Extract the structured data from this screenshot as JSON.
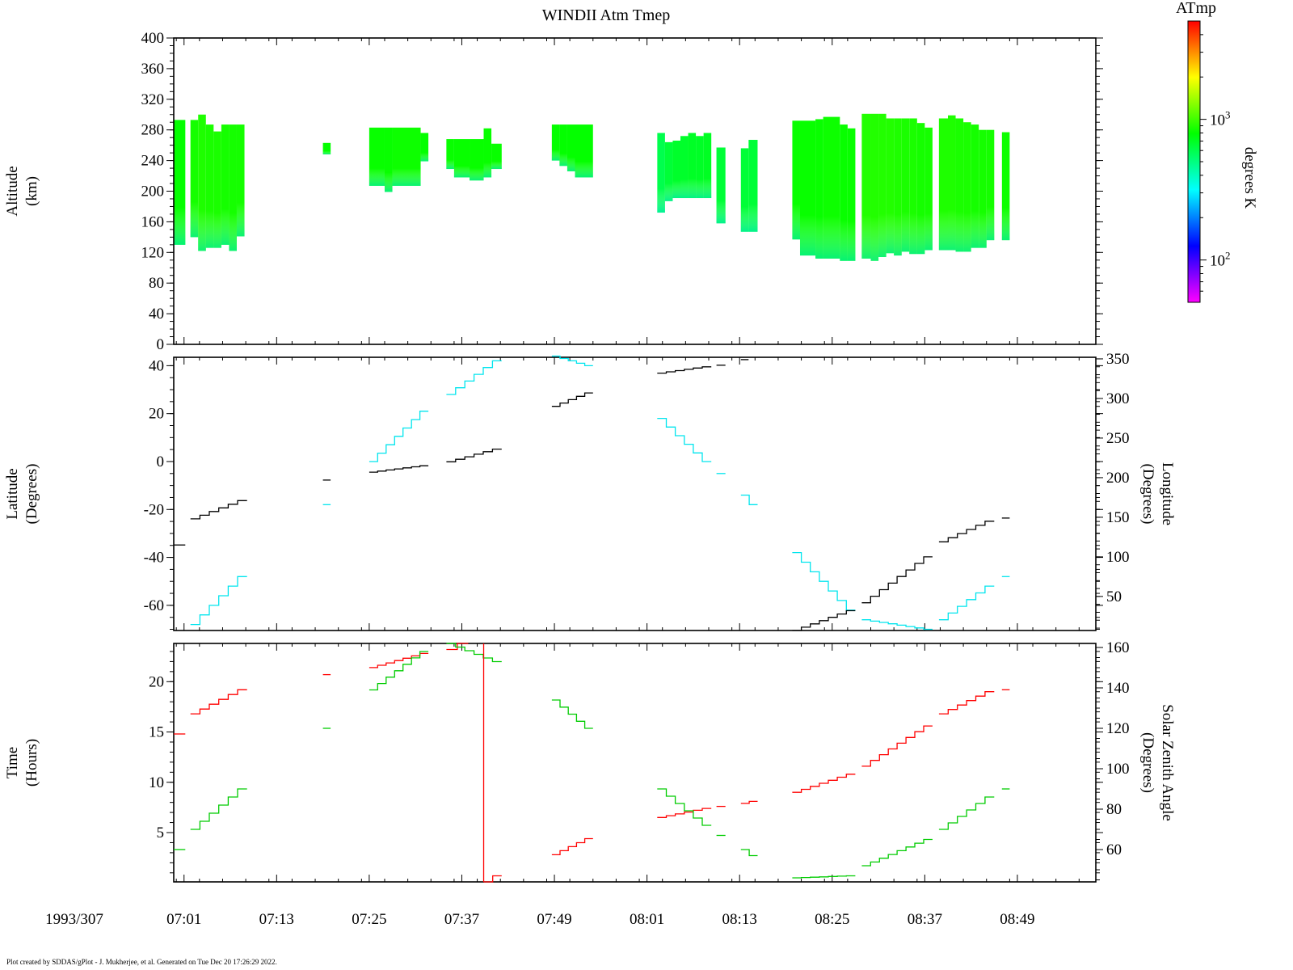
{
  "title": "WINDII Atm Tmep",
  "date_label": "1993/307",
  "footer": "Plot created by SDDAS/gPlot - J. Mukherjee, et al.  Generated on Tue Dec 20 17:26:29 2022.",
  "time_ticks": [
    "07:01",
    "07:13",
    "07:25",
    "07:37",
    "07:49",
    "08:01",
    "08:13",
    "08:25",
    "08:37",
    "08:49"
  ],
  "colorbar": {
    "title": "ATmp",
    "label": "degrees K",
    "scale": "log",
    "range": [
      50,
      5000
    ],
    "tick_labels": [
      {
        "base": "10",
        "exp": "3",
        "value": 1000
      },
      {
        "base": "10",
        "exp": "2",
        "value": 100
      }
    ]
  },
  "colors": {
    "latitude": "#00e5ee",
    "longitude": "#000000",
    "time": "#ff0000",
    "sza": "#00cc00",
    "temp_fill": "#66ee22"
  },
  "chart_data": [
    {
      "type": "heatmap",
      "title": "WINDII Atm Tmep",
      "ylabel": "Altitude\n(km)",
      "ylim": [
        0,
        400
      ],
      "yticks": [
        0,
        40,
        80,
        120,
        160,
        200,
        240,
        280,
        320,
        360,
        400
      ],
      "xlim": [
        "06:59:40",
        "08:59:10"
      ],
      "columns": [
        {
          "t0": "06:59:40",
          "t1": "07:01:10",
          "ybot": 130,
          "ytop": 293,
          "temp": 800
        },
        {
          "t0": "07:01:50",
          "t1": "07:02:50",
          "ybot": 140,
          "ytop": 293,
          "temp": 850
        },
        {
          "t0": "07:02:50",
          "t1": "07:03:50",
          "ybot": 122,
          "ytop": 300,
          "temp": 880
        },
        {
          "t0": "07:03:50",
          "t1": "07:04:50",
          "ybot": 126,
          "ytop": 287,
          "temp": 870
        },
        {
          "t0": "07:04:50",
          "t1": "07:05:50",
          "ybot": 126,
          "ytop": 278,
          "temp": 870
        },
        {
          "t0": "07:05:50",
          "t1": "07:06:50",
          "ybot": 130,
          "ytop": 287,
          "temp": 860
        },
        {
          "t0": "07:06:50",
          "t1": "07:07:50",
          "ybot": 122,
          "ytop": 287,
          "temp": 850
        },
        {
          "t0": "07:07:50",
          "t1": "07:08:50",
          "ybot": 141,
          "ytop": 287,
          "temp": 850
        },
        {
          "t0": "07:19:00",
          "t1": "07:20:00",
          "ybot": 248,
          "ytop": 263,
          "temp": 800
        },
        {
          "t0": "07:25:00",
          "t1": "07:27:00",
          "ybot": 207,
          "ytop": 283,
          "temp": 820
        },
        {
          "t0": "07:27:00",
          "t1": "07:28:00",
          "ybot": 199,
          "ytop": 283,
          "temp": 820
        },
        {
          "t0": "07:28:00",
          "t1": "07:31:40",
          "ybot": 207,
          "ytop": 283,
          "temp": 830
        },
        {
          "t0": "07:31:40",
          "t1": "07:32:40",
          "ybot": 239,
          "ytop": 276,
          "temp": 800
        },
        {
          "t0": "07:35:00",
          "t1": "07:36:00",
          "ybot": 229,
          "ytop": 268,
          "temp": 820
        },
        {
          "t0": "07:36:00",
          "t1": "07:38:00",
          "ybot": 218,
          "ytop": 268,
          "temp": 820
        },
        {
          "t0": "07:38:00",
          "t1": "07:39:50",
          "ybot": 214,
          "ytop": 268,
          "temp": 820
        },
        {
          "t0": "07:39:50",
          "t1": "07:40:50",
          "ybot": 218,
          "ytop": 282,
          "temp": 820
        },
        {
          "t0": "07:40:50",
          "t1": "07:42:10",
          "ybot": 229,
          "ytop": 262,
          "temp": 820
        },
        {
          "t0": "07:48:40",
          "t1": "07:49:40",
          "ybot": 240,
          "ytop": 287,
          "temp": 800
        },
        {
          "t0": "07:49:40",
          "t1": "07:50:40",
          "ybot": 233,
          "ytop": 287,
          "temp": 800
        },
        {
          "t0": "07:50:40",
          "t1": "07:51:40",
          "ybot": 226,
          "ytop": 287,
          "temp": 800
        },
        {
          "t0": "07:51:40",
          "t1": "07:54:00",
          "ybot": 218,
          "ytop": 287,
          "temp": 800
        },
        {
          "t0": "08:02:20",
          "t1": "08:03:20",
          "ybot": 172,
          "ytop": 276,
          "temp": 600
        },
        {
          "t0": "08:03:20",
          "t1": "08:04:20",
          "ybot": 187,
          "ytop": 264,
          "temp": 650
        },
        {
          "t0": "08:04:20",
          "t1": "08:05:20",
          "ybot": 191,
          "ytop": 266,
          "temp": 680
        },
        {
          "t0": "08:05:20",
          "t1": "08:06:20",
          "ybot": 191,
          "ytop": 272,
          "temp": 680
        },
        {
          "t0": "08:06:20",
          "t1": "08:07:20",
          "ybot": 191,
          "ytop": 276,
          "temp": 690
        },
        {
          "t0": "08:07:20",
          "t1": "08:08:20",
          "ybot": 191,
          "ytop": 272,
          "temp": 690
        },
        {
          "t0": "08:08:20",
          "t1": "08:09:20",
          "ybot": 191,
          "ytop": 276,
          "temp": 700
        },
        {
          "t0": "08:10:00",
          "t1": "08:11:10",
          "ybot": 158,
          "ytop": 257,
          "temp": 650
        },
        {
          "t0": "08:13:10",
          "t1": "08:14:10",
          "ybot": 147,
          "ytop": 256,
          "temp": 650
        },
        {
          "t0": "08:14:10",
          "t1": "08:15:20",
          "ybot": 147,
          "ytop": 267,
          "temp": 650
        },
        {
          "t0": "08:19:50",
          "t1": "08:20:50",
          "ybot": 137,
          "ytop": 292,
          "temp": 820
        },
        {
          "t0": "08:20:50",
          "t1": "08:22:50",
          "ybot": 116,
          "ytop": 292,
          "temp": 820
        },
        {
          "t0": "08:22:50",
          "t1": "08:23:50",
          "ybot": 112,
          "ytop": 294,
          "temp": 820
        },
        {
          "t0": "08:23:50",
          "t1": "08:26:00",
          "ybot": 112,
          "ytop": 297,
          "temp": 830
        },
        {
          "t0": "08:26:00",
          "t1": "08:27:00",
          "ybot": 109,
          "ytop": 287,
          "temp": 820
        },
        {
          "t0": "08:27:00",
          "t1": "08:28:00",
          "ybot": 109,
          "ytop": 282,
          "temp": 820
        },
        {
          "t0": "08:28:50",
          "t1": "08:30:00",
          "ybot": 112,
          "ytop": 301,
          "temp": 900
        },
        {
          "t0": "08:30:00",
          "t1": "08:31:00",
          "ybot": 109,
          "ytop": 301,
          "temp": 900
        },
        {
          "t0": "08:31:00",
          "t1": "08:32:00",
          "ybot": 114,
          "ytop": 301,
          "temp": 900
        },
        {
          "t0": "08:32:00",
          "t1": "08:33:00",
          "ybot": 119,
          "ytop": 295,
          "temp": 890
        },
        {
          "t0": "08:33:00",
          "t1": "08:34:00",
          "ybot": 116,
          "ytop": 295,
          "temp": 880
        },
        {
          "t0": "08:34:00",
          "t1": "08:35:00",
          "ybot": 121,
          "ytop": 295,
          "temp": 870
        },
        {
          "t0": "08:35:00",
          "t1": "08:36:00",
          "ybot": 118,
          "ytop": 295,
          "temp": 870
        },
        {
          "t0": "08:36:00",
          "t1": "08:37:00",
          "ybot": 118,
          "ytop": 289,
          "temp": 860
        },
        {
          "t0": "08:37:00",
          "t1": "08:38:00",
          "ybot": 123,
          "ytop": 283,
          "temp": 850
        },
        {
          "t0": "08:38:50",
          "t1": "08:40:00",
          "ybot": 123,
          "ytop": 295,
          "temp": 880
        },
        {
          "t0": "08:40:00",
          "t1": "08:41:00",
          "ybot": 123,
          "ytop": 299,
          "temp": 880
        },
        {
          "t0": "08:41:00",
          "t1": "08:42:00",
          "ybot": 121,
          "ytop": 295,
          "temp": 870
        },
        {
          "t0": "08:42:00",
          "t1": "08:43:00",
          "ybot": 121,
          "ytop": 290,
          "temp": 870
        },
        {
          "t0": "08:43:00",
          "t1": "08:44:00",
          "ybot": 126,
          "ytop": 287,
          "temp": 860
        },
        {
          "t0": "08:44:00",
          "t1": "08:45:00",
          "ybot": 126,
          "ytop": 280,
          "temp": 860
        },
        {
          "t0": "08:45:00",
          "t1": "08:46:00",
          "ybot": 136,
          "ytop": 280,
          "temp": 850
        },
        {
          "t0": "08:47:00",
          "t1": "08:48:00",
          "ybot": 136,
          "ytop": 277,
          "temp": 830
        }
      ]
    },
    {
      "type": "line",
      "ylabel": "Latitude\n(Degrees)",
      "ylabel_right": "Longitude\n(Degrees)",
      "ylim": [
        -70.5,
        43.5
      ],
      "yticks": [
        40,
        20,
        0,
        -20,
        -40,
        -60
      ],
      "ylim_right": [
        7,
        352
      ],
      "yticks_right": [
        350,
        300,
        250,
        200,
        150,
        100,
        50
      ],
      "series": [
        {
          "axis": "left",
          "segments": [
            {
              "t0": "07:01:50",
              "t1": "07:09:10",
              "y0": -68,
              "y1": -48
            },
            {
              "t0": "07:19:00",
              "t1": "07:20:00",
              "y0": -18,
              "y1": -18
            },
            {
              "t0": "07:25:00",
              "t1": "07:32:40",
              "y0": 0,
              "y1": 21
            },
            {
              "t0": "07:35:00",
              "t1": "07:42:10",
              "y0": 28,
              "y1": 42
            },
            {
              "t0": "07:48:40",
              "t1": "07:54:00",
              "y0": 44,
              "y1": 40
            },
            {
              "t0": "08:02:20",
              "t1": "08:09:20",
              "y0": 18,
              "y1": 0
            },
            {
              "t0": "08:10:00",
              "t1": "08:11:10",
              "y0": -5,
              "y1": -5
            },
            {
              "t0": "08:13:10",
              "t1": "08:15:20",
              "y0": -14,
              "y1": -18
            },
            {
              "t0": "08:19:50",
              "t1": "08:28:00",
              "y0": -38,
              "y1": -62
            },
            {
              "t0": "08:28:50",
              "t1": "08:38:00",
              "y0": -66,
              "y1": -70
            },
            {
              "t0": "08:38:50",
              "t1": "08:46:00",
              "y0": -66,
              "y1": -52
            },
            {
              "t0": "08:47:00",
              "t1": "08:48:00",
              "y0": -48,
              "y1": -48
            }
          ]
        },
        {
          "axis": "right",
          "segments": [
            {
              "t0": "06:59:40",
              "t1": "07:01:10",
              "y0": 115,
              "y1": 125
            },
            {
              "t0": "07:01:50",
              "t1": "07:09:10",
              "y0": 148,
              "y1": 171
            },
            {
              "t0": "07:19:00",
              "t1": "07:20:00",
              "y0": 197,
              "y1": 197
            },
            {
              "t0": "07:25:00",
              "t1": "07:32:40",
              "y0": 207,
              "y1": 215
            },
            {
              "t0": "07:35:00",
              "t1": "07:42:10",
              "y0": 220,
              "y1": 236
            },
            {
              "t0": "07:48:40",
              "t1": "07:54:00",
              "y0": 290,
              "y1": 307
            },
            {
              "t0": "08:02:20",
              "t1": "08:09:20",
              "y0": 332,
              "y1": 340
            },
            {
              "t0": "08:10:00",
              "t1": "08:11:10",
              "y0": 342,
              "y1": 342
            },
            {
              "t0": "08:13:10",
              "t1": "08:14:10",
              "y0": 349,
              "y1": 349
            },
            {
              "t0": "08:19:50",
              "t1": "08:28:00",
              "y0": 7,
              "y1": 32
            },
            {
              "t0": "08:28:50",
              "t1": "08:38:00",
              "y0": 42,
              "y1": 100
            },
            {
              "t0": "08:38:50",
              "t1": "08:46:00",
              "y0": 119,
              "y1": 145
            },
            {
              "t0": "08:47:00",
              "t1": "08:48:00",
              "y0": 149,
              "y1": 149
            }
          ]
        }
      ]
    },
    {
      "type": "line",
      "ylabel": "Time\n(Hours)",
      "ylabel_right": "Solar Zenith Angle\n(Degrees)",
      "ylim": [
        0.1,
        23.8
      ],
      "yticks": [
        20,
        15,
        10,
        5
      ],
      "ylim_right": [
        44,
        162
      ],
      "yticks_right": [
        160,
        140,
        120,
        100,
        80,
        60
      ],
      "series": [
        {
          "axis": "left",
          "segments": [
            {
              "t0": "06:59:40",
              "t1": "07:01:10",
              "y0": 14.8,
              "y1": 15.5
            },
            {
              "t0": "07:01:50",
              "t1": "07:09:10",
              "y0": 16.8,
              "y1": 19.2
            },
            {
              "t0": "07:19:00",
              "t1": "07:20:00",
              "y0": 20.7,
              "y1": 20.7
            },
            {
              "t0": "07:25:00",
              "t1": "07:32:40",
              "y0": 21.4,
              "y1": 22.8
            },
            {
              "t0": "07:35:00",
              "t1": "07:37:50",
              "y0": 23.2,
              "y1": 23.8
            },
            {
              "t0": "07:39:50",
              "t1": "07:42:10",
              "y0": 0.1,
              "y1": 0.7
            },
            {
              "t0": "07:48:40",
              "t1": "07:54:00",
              "y0": 2.8,
              "y1": 4.4
            },
            {
              "t0": "08:02:20",
              "t1": "08:09:20",
              "y0": 6.5,
              "y1": 7.4
            },
            {
              "t0": "08:10:00",
              "t1": "08:11:10",
              "y0": 7.6,
              "y1": 7.6
            },
            {
              "t0": "08:13:10",
              "t1": "08:15:20",
              "y0": 7.9,
              "y1": 8.1
            },
            {
              "t0": "08:19:50",
              "t1": "08:28:00",
              "y0": 9.0,
              "y1": 10.8
            },
            {
              "t0": "08:28:50",
              "t1": "08:38:00",
              "y0": 11.6,
              "y1": 15.6
            },
            {
              "t0": "08:38:50",
              "t1": "08:46:00",
              "y0": 16.8,
              "y1": 19.0
            },
            {
              "t0": "08:47:00",
              "t1": "08:48:00",
              "y0": 19.2,
              "y1": 19.2
            }
          ]
        },
        {
          "axis": "right",
          "segments": [
            {
              "t0": "06:59:40",
              "t1": "07:01:10",
              "y0": 60,
              "y1": 63
            },
            {
              "t0": "07:01:50",
              "t1": "07:09:10",
              "y0": 70,
              "y1": 90
            },
            {
              "t0": "07:19:00",
              "t1": "07:20:00",
              "y0": 120,
              "y1": 120
            },
            {
              "t0": "07:25:00",
              "t1": "07:32:40",
              "y0": 139,
              "y1": 158
            },
            {
              "t0": "07:35:00",
              "t1": "07:42:10",
              "y0": 162,
              "y1": 153
            },
            {
              "t0": "07:48:40",
              "t1": "07:54:00",
              "y0": 134,
              "y1": 120
            },
            {
              "t0": "08:02:20",
              "t1": "08:09:20",
              "y0": 90,
              "y1": 72
            },
            {
              "t0": "08:10:00",
              "t1": "08:11:10",
              "y0": 67,
              "y1": 67
            },
            {
              "t0": "08:13:10",
              "t1": "08:15:20",
              "y0": 60,
              "y1": 57
            },
            {
              "t0": "08:19:50",
              "t1": "08:28:00",
              "y0": 46,
              "y1": 47
            },
            {
              "t0": "08:28:50",
              "t1": "08:38:00",
              "y0": 52,
              "y1": 65
            },
            {
              "t0": "08:38:50",
              "t1": "08:46:00",
              "y0": 70,
              "y1": 86
            },
            {
              "t0": "08:47:00",
              "t1": "08:48:00",
              "y0": 90,
              "y1": 90
            }
          ]
        }
      ]
    }
  ]
}
